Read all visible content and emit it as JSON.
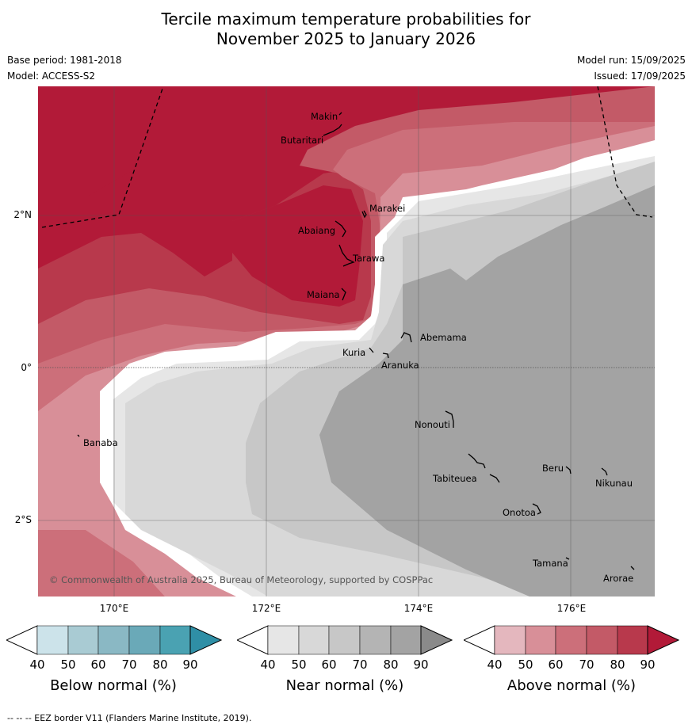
{
  "title_line1": "Tercile maximum temperature probabilities for",
  "title_line2": "November 2025 to January 2026",
  "base_period": "Base period: 1981-2018",
  "model": "Model: ACCESS-S2",
  "model_run": "Model run: 15/09/2025",
  "issued": "Issued: 17/09/2025",
  "lat_labels": [
    "2°N",
    "0°",
    "2°S"
  ],
  "lon_labels": [
    "170°E",
    "172°E",
    "174°E",
    "176°E"
  ],
  "places": [
    "Makin",
    "Butaritari",
    "Marakei",
    "Abaiang",
    "Tarawa",
    "Maiana",
    "Abemama",
    "Kuria",
    "Aranuka",
    "Nonouti",
    "Banaba",
    "Beru",
    "Nikunau",
    "Tabiteuea",
    "Onotoa",
    "Tamana",
    "Arorae"
  ],
  "copyright": "© Commonwealth of Australia 2025, Bureau of Meteorology, supported by COSPPac",
  "colorbars": [
    {
      "label": "Below normal (%)",
      "ticks": [
        "40",
        "50",
        "60",
        "70",
        "80",
        "90"
      ],
      "colors": [
        "#cce3ea",
        "#a9cbd3",
        "#8ab8c4",
        "#6aa9b8",
        "#4aa2b2",
        "#2f8fa6"
      ]
    },
    {
      "label": "Near normal (%)",
      "ticks": [
        "40",
        "50",
        "60",
        "70",
        "80",
        "90"
      ],
      "colors": [
        "#e6e6e6",
        "#d8d8d8",
        "#c7c7c7",
        "#b4b4b4",
        "#a3a3a3",
        "#8a8a8a"
      ]
    },
    {
      "label": "Above normal (%)",
      "ticks": [
        "40",
        "50",
        "60",
        "70",
        "80",
        "90"
      ],
      "colors": [
        "#e4b7be",
        "#d88f98",
        "#cc6f7a",
        "#c35a67",
        "#b8394c",
        "#b21a38"
      ]
    }
  ],
  "footer": "--  --  -- EEZ border V11 (Flanders Marine Institute, 2019)."
}
